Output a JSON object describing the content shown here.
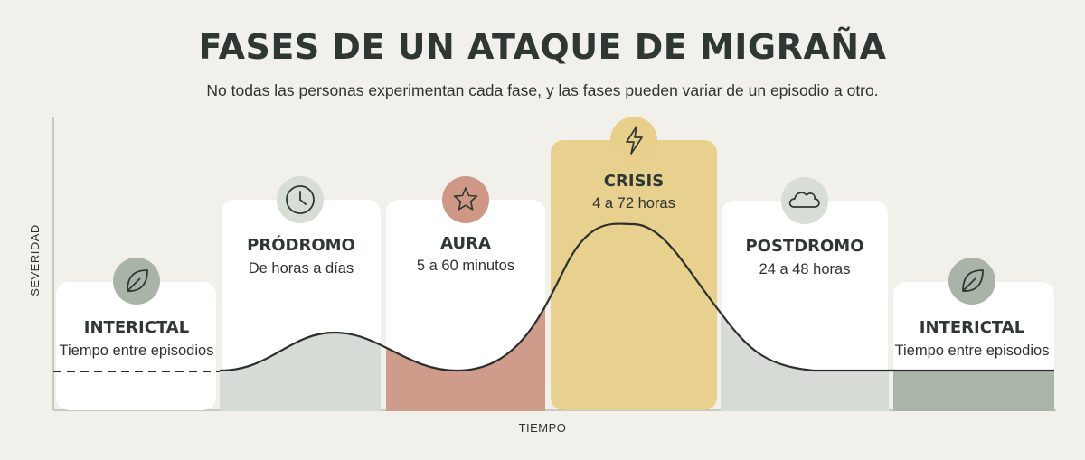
{
  "title": "FASES DE UN ATAQUE DE MIGRAÑA",
  "subtitle": "No todas las personas experimentan cada fase, y las fases pueden variar de un episodio a otro.",
  "axes": {
    "y_label": "SEVERIDAD",
    "x_label": "TIEMPO"
  },
  "phases": [
    {
      "name": "INTERICTAL",
      "duration": "Tiempo entre episodios",
      "icon": "leaf-icon",
      "color": "#ffffff",
      "icon_bg": "#a9b3a8"
    },
    {
      "name": "PRÓDROMO",
      "duration": "De horas a días",
      "icon": "clock-icon",
      "color": "#d6dcd5",
      "icon_bg": "#d8ddd6"
    },
    {
      "name": "AURA",
      "duration": "5 a 60 minutos",
      "icon": "star-icon",
      "color": "#cf9c8b",
      "icon_bg": "#cf9786"
    },
    {
      "name": "CRISIS",
      "duration": "4 a 72 horas",
      "icon": "lightning-icon",
      "color": "#e8cf8c",
      "icon_bg": "#e8cf8c"
    },
    {
      "name": "POSTDROMO",
      "duration": "24 a 48 horas",
      "icon": "cloud-icon",
      "color": "#d6dcd5",
      "icon_bg": "#d8ddd6"
    },
    {
      "name": "INTERICTAL",
      "duration": "Tiempo entre episodios",
      "icon": "leaf-icon",
      "color": "#aab4a9",
      "icon_bg": "#a9b3a8"
    }
  ]
}
